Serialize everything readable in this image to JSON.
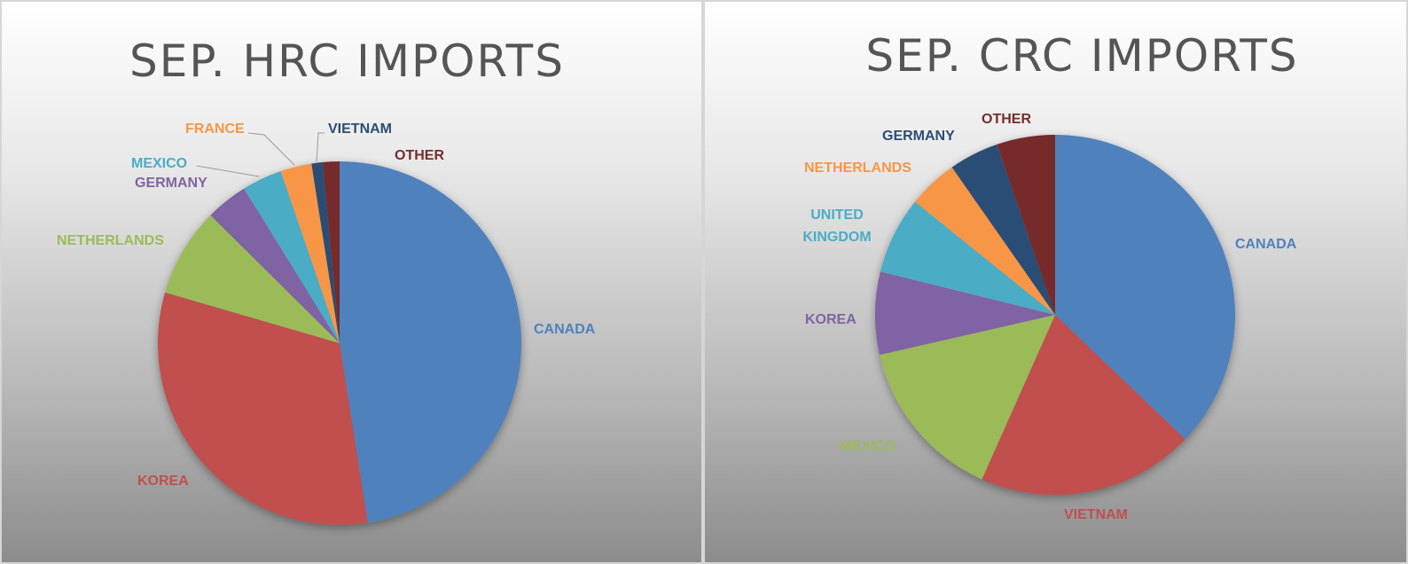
{
  "chart_data": [
    {
      "type": "pie",
      "title": "SEP. HRC IMPORTS",
      "slices": [
        {
          "label": "CANADA",
          "value": 48.0,
          "color": "#4F81BD"
        },
        {
          "label": "KOREA",
          "value": 32.3,
          "color": "#C0504D"
        },
        {
          "label": "NETHERLANDS",
          "value": 8.0,
          "color": "#9BBB59"
        },
        {
          "label": "GERMANY",
          "value": 3.8,
          "color": "#8064A2"
        },
        {
          "label": "MEXICO",
          "value": 3.6,
          "color": "#4BACC6"
        },
        {
          "label": "FRANCE",
          "value": 2.8,
          "color": "#F79646"
        },
        {
          "label": "VIETNAM",
          "value": 1.0,
          "color": "#2C4D75"
        },
        {
          "label": "OTHER",
          "value": 1.5,
          "color": "#772C2A"
        }
      ]
    },
    {
      "type": "pie",
      "title": "SEP. CRC IMPORTS",
      "slices": [
        {
          "label": "CANADA",
          "value": 39.0,
          "color": "#4F81BD"
        },
        {
          "label": "VIETNAM",
          "value": 20.5,
          "color": "#C0504D"
        },
        {
          "label": "MEXICO",
          "value": 15.5,
          "color": "#9BBB59"
        },
        {
          "label": "KOREA",
          "value": 7.8,
          "color": "#8064A2"
        },
        {
          "label": "UNITED KINGDOM",
          "value": 7.3,
          "color": "#4BACC6"
        },
        {
          "label": "NETHERLANDS",
          "value": 4.7,
          "color": "#F79646"
        },
        {
          "label": "GERMANY",
          "value": 4.7,
          "color": "#2C4D75"
        },
        {
          "label": "OTHER",
          "value": 5.5,
          "color": "#772C2A"
        }
      ]
    }
  ]
}
